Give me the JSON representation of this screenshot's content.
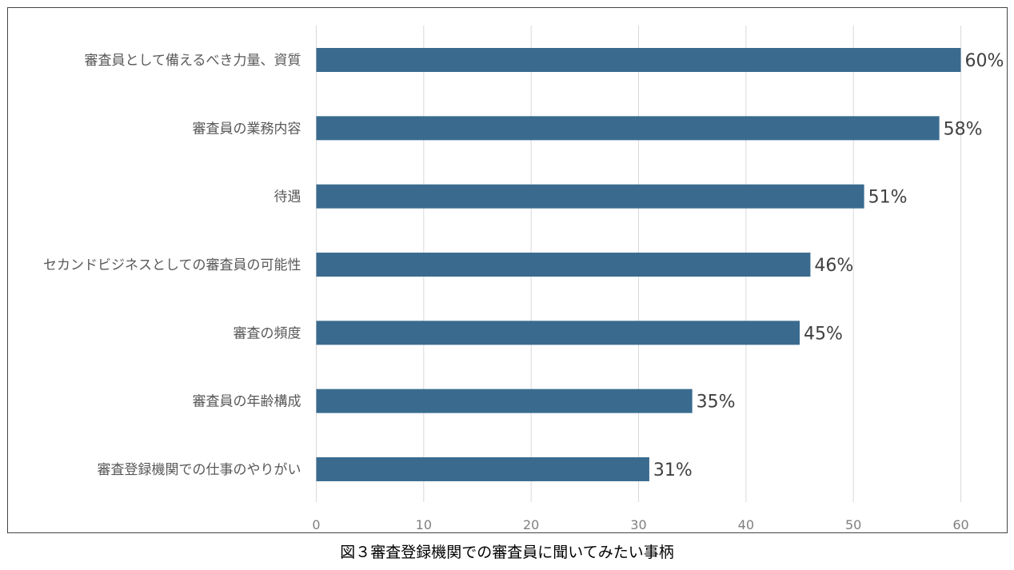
{
  "chart_data": {
    "type": "bar",
    "orientation": "horizontal",
    "categories": [
      "審査員として備えるべき力量、資質",
      "審査員の業務内容",
      "待遇",
      "セカンドビジネスとしての審査員の可能性",
      "審査の頻度",
      "審査員の年齢構成",
      "審査登録機関での仕事のやりがい"
    ],
    "values": [
      60,
      58,
      51,
      46,
      45,
      35,
      31
    ],
    "data_labels": [
      "60%",
      "58%",
      "51%",
      "46%",
      "45%",
      "35%",
      "31%"
    ],
    "xlim": [
      0,
      60
    ],
    "x_ticks": [
      0,
      10,
      20,
      30,
      40,
      50,
      60
    ],
    "grid": "vertical",
    "legend": "none",
    "bar_color": "#3a6b8f",
    "grid_color": "#d9d9d9"
  },
  "caption": "図３審査登録機関での審査員に聞いてみたい事柄"
}
